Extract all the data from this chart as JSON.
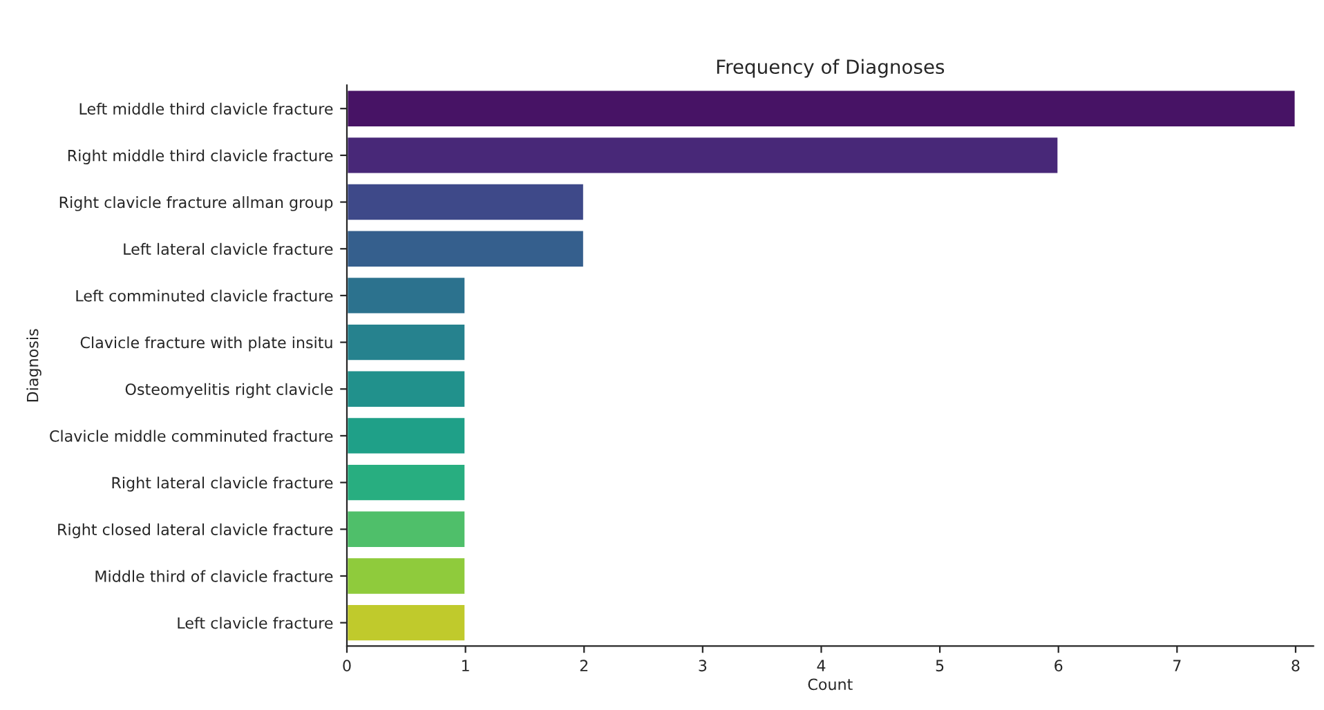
{
  "chart_data": {
    "type": "bar",
    "orientation": "horizontal",
    "title": "Frequency of Diagnoses",
    "xlabel": "Count",
    "ylabel": "Diagnosis",
    "categories": [
      "Left middle third clavicle fracture",
      "Right middle third clavicle fracture",
      "Right clavicle fracture allman group",
      "Left lateral clavicle fracture",
      "Left comminuted clavicle fracture",
      "Clavicle fracture with plate insitu",
      "Osteomyelitis right clavicle",
      "Clavicle middle comminuted fracture",
      "Right lateral clavicle fracture",
      "Right closed lateral clavicle fracture",
      "Middle third of clavicle fracture",
      "Left clavicle fracture"
    ],
    "values": [
      8,
      6,
      2,
      2,
      1,
      1,
      1,
      1,
      1,
      1,
      1,
      1
    ],
    "colors": [
      "#471365",
      "#482878",
      "#3e4989",
      "#355f8d",
      "#2c728e",
      "#26828e",
      "#21918c",
      "#1fa088",
      "#28ae80",
      "#4fbf6a",
      "#8fcb3c",
      "#c0ca2c"
    ],
    "xlim": [
      0,
      8.15
    ],
    "xticks": [
      0,
      1,
      2,
      3,
      4,
      5,
      6,
      7,
      8
    ],
    "grid": false,
    "legend": false
  }
}
